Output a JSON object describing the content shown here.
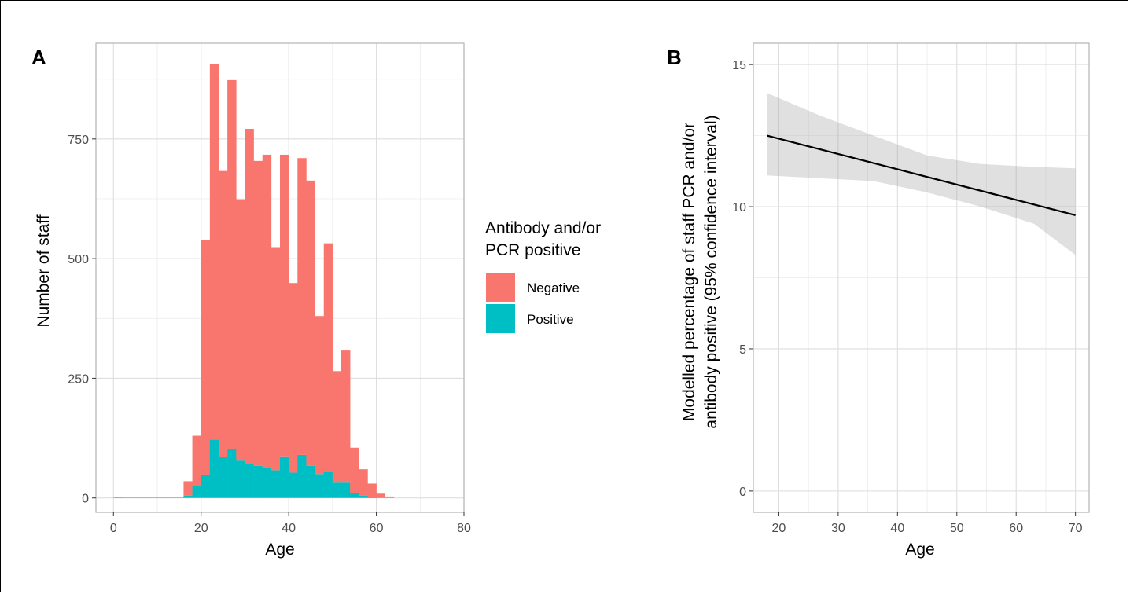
{
  "chart_data": [
    {
      "panel_label": "A",
      "type": "bar",
      "stacked": true,
      "xlabel": "Age",
      "ylabel": "Number of staff",
      "xlim": [
        -4,
        80
      ],
      "ylim": [
        -30,
        950
      ],
      "xticks": [
        0,
        20,
        40,
        60,
        80
      ],
      "yticks": [
        0,
        250,
        500,
        750
      ],
      "grid": true,
      "bin_width": 2,
      "bin_starts": [
        0,
        2,
        4,
        6,
        8,
        10,
        12,
        14,
        16,
        18,
        20,
        22,
        24,
        26,
        28,
        30,
        32,
        34,
        36,
        38,
        40,
        42,
        44,
        46,
        48,
        50,
        52,
        54,
        56,
        58,
        60,
        62,
        64,
        66,
        68,
        70,
        72,
        74
      ],
      "legend": {
        "title_line1": "Antibody and/or",
        "title_line2": "PCR positive",
        "placement": "right"
      },
      "series": [
        {
          "name": "Positive",
          "color": "#00BFC4",
          "values": [
            0,
            0,
            0,
            0,
            0,
            0,
            0,
            0,
            5,
            25,
            48,
            122,
            85,
            103,
            78,
            73,
            67,
            62,
            58,
            87,
            53,
            90,
            67,
            50,
            55,
            32,
            32,
            10,
            5,
            2,
            1,
            0,
            0,
            0,
            0,
            0,
            0,
            0
          ]
        },
        {
          "name": "Negative",
          "color": "#F8766D",
          "values": [
            2,
            1,
            1,
            1,
            1,
            1,
            1,
            1,
            30,
            105,
            491,
            785,
            598,
            770,
            546,
            698,
            637,
            655,
            466,
            630,
            396,
            620,
            596,
            330,
            477,
            233,
            276,
            95,
            55,
            28,
            8,
            3,
            0,
            0,
            0,
            0,
            0,
            0
          ]
        }
      ]
    },
    {
      "panel_label": "B",
      "type": "line",
      "xlabel": "Age",
      "ylabel_line1": "Modelled percentage of staff PCR and/or",
      "ylabel_line2": "antibody positive (95% confidence interval)",
      "xlim": [
        15.7,
        72.3
      ],
      "ylim": [
        -0.75,
        15.75
      ],
      "xticks": [
        20,
        30,
        40,
        50,
        60,
        70
      ],
      "yticks": [
        0,
        5,
        10,
        15
      ],
      "grid": true,
      "series": [
        {
          "name": "",
          "color": "#000000",
          "x": [
            18,
            70
          ],
          "y": [
            12.5,
            9.7
          ],
          "ci_lower": [
            11.1,
            11.0,
            10.9,
            10.5,
            10.0,
            9.4,
            8.3
          ],
          "ci_upper": [
            14.0,
            13.2,
            12.5,
            11.8,
            11.5,
            11.4,
            11.35
          ],
          "ci_x": [
            18,
            27,
            36,
            45,
            54,
            63,
            70
          ]
        }
      ]
    }
  ]
}
